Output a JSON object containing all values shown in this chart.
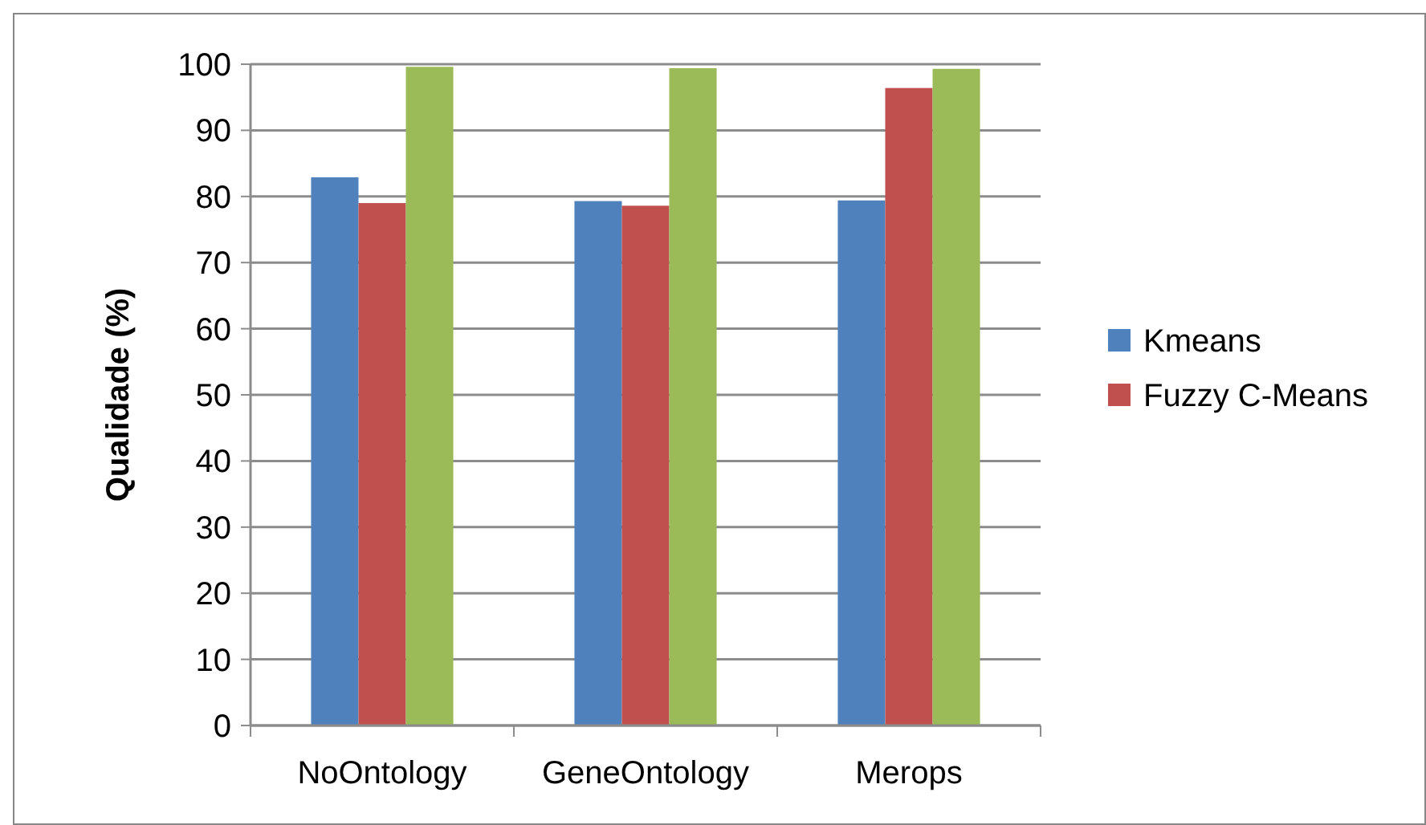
{
  "chart_data": {
    "type": "bar",
    "ylabel": "Qualidade (%)",
    "categories": [
      "NoOntology",
      "GeneOntology",
      "Merops"
    ],
    "series": [
      {
        "name": "Kmeans",
        "color": "#4f81bd",
        "values": [
          82.9,
          79.3,
          79.4
        ]
      },
      {
        "name": "Fuzzy C-Means",
        "color": "#c0504d",
        "values": [
          79.0,
          78.6,
          96.4
        ]
      },
      {
        "color": "#9bbb59",
        "values": [
          99.6,
          99.4,
          99.3
        ]
      }
    ],
    "ylim": [
      0,
      100
    ],
    "yticks": [
      0,
      10,
      20,
      30,
      40,
      50,
      60,
      70,
      80,
      90,
      100
    ],
    "grid": "y",
    "legend": "right"
  }
}
